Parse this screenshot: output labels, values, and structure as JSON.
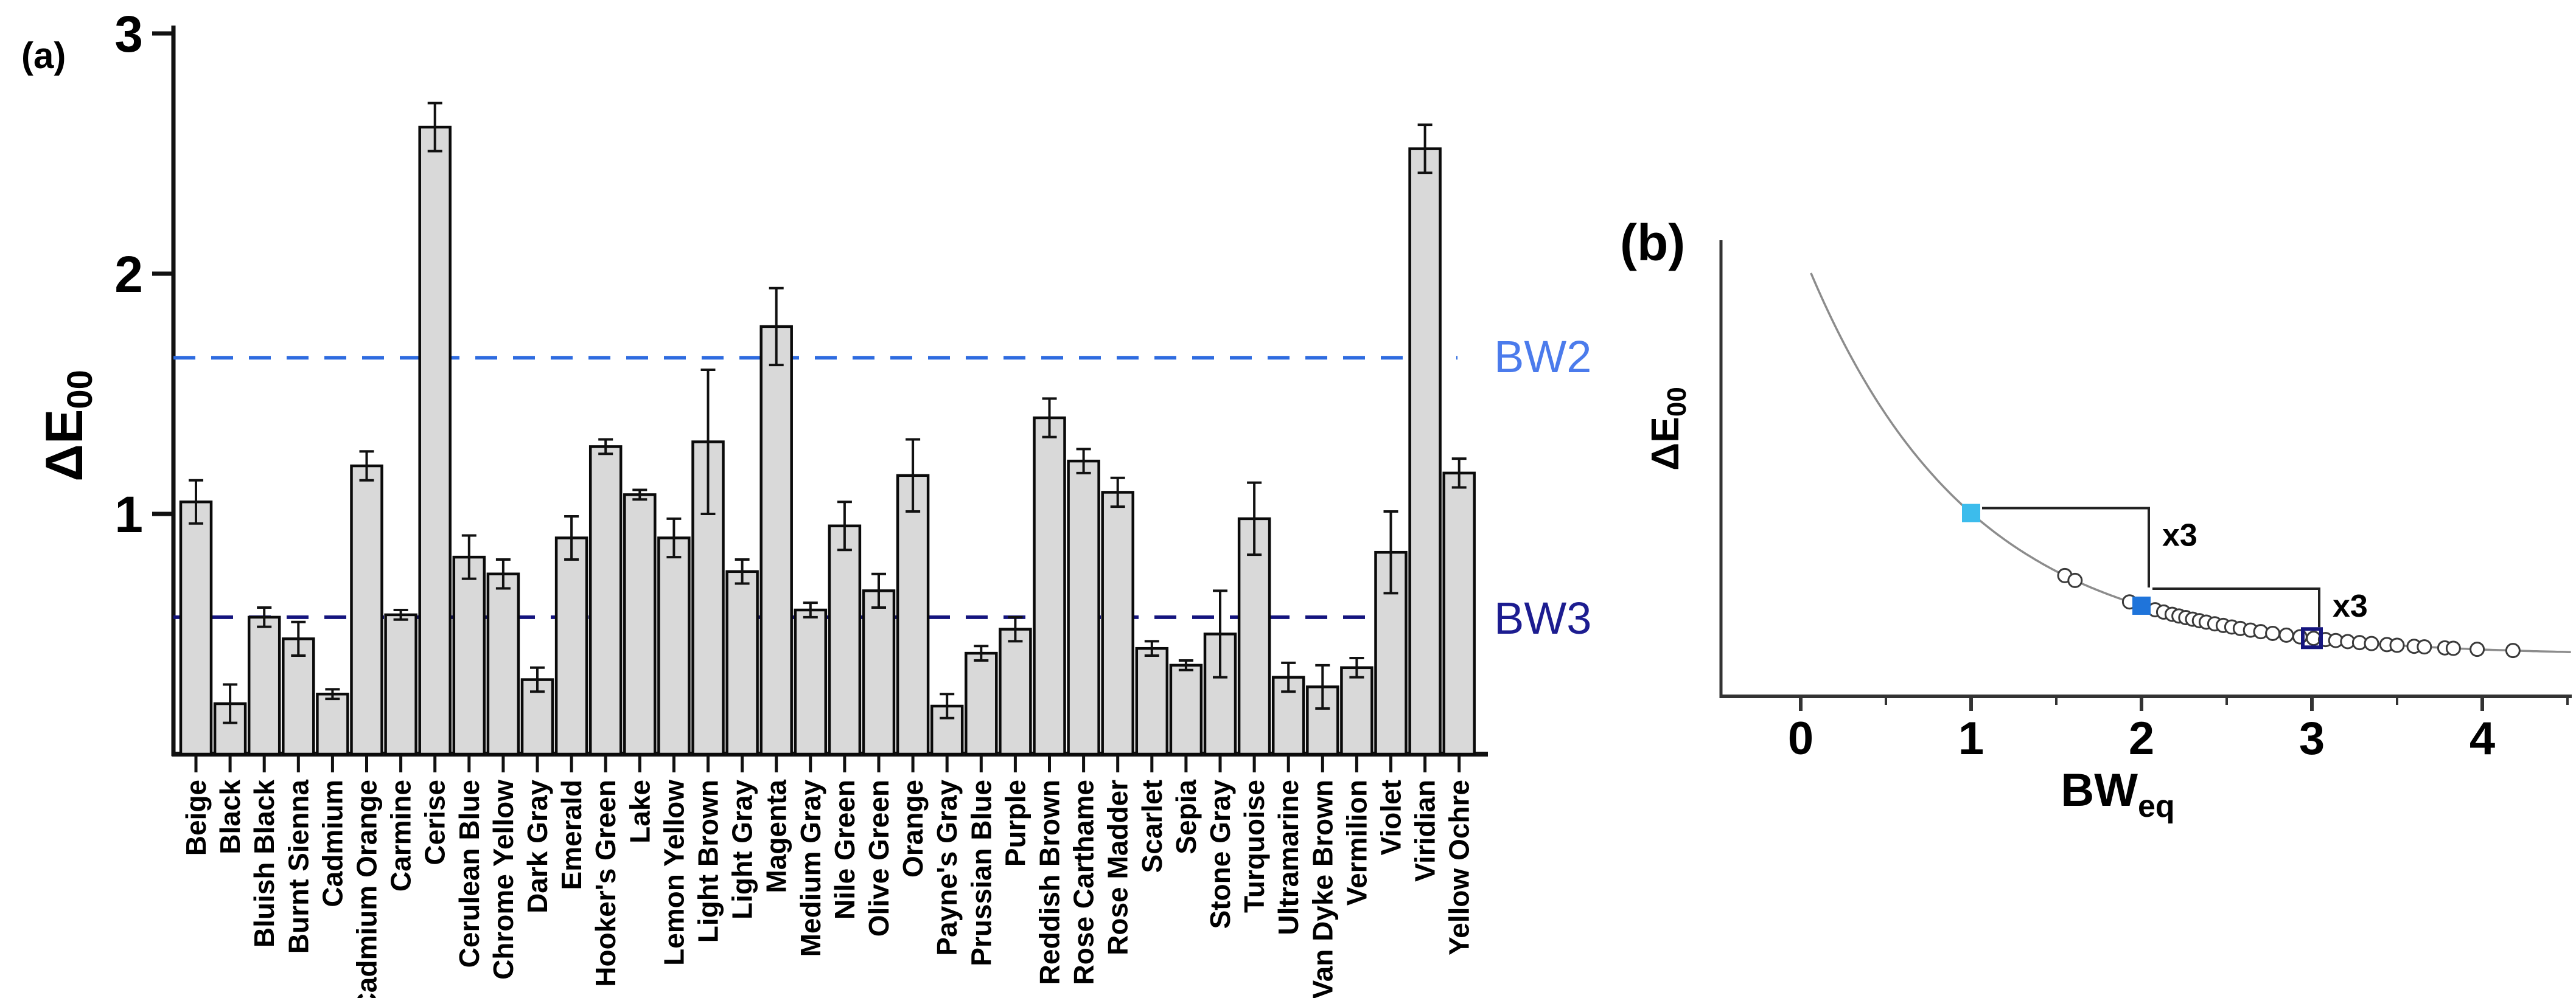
{
  "figure": {
    "panel_a_label": "(a)",
    "panel_b_label": "(b)",
    "ylabel_main": "ΔE",
    "ylabel_sub": "00",
    "xlabel_b_main": "BW",
    "xlabel_b_sub": "eq",
    "bw2_label": "BW2",
    "bw3_label": "BW3"
  },
  "colors": {
    "bar_fill": "#d9d9d9",
    "bar_stroke": "#0a0a0a",
    "axis": "#111111",
    "bw2_line": "#2e6be0",
    "bw2_text": "#4b7bec",
    "bw3_line": "#14147e",
    "bw3_text": "#1c1c90",
    "curve": "#8c8c8c",
    "circle_stroke": "#3a3a3a",
    "square_1": "#3cbcec",
    "square_2": "#1f74da",
    "square_3": "#15157e"
  },
  "chart_data": [
    {
      "type": "bar",
      "panel": "a",
      "title": "",
      "xlabel": "",
      "ylabel": "ΔE00",
      "ylim": [
        0,
        3
      ],
      "yticks": [
        1,
        2,
        3
      ],
      "grid": false,
      "categories": [
        "Beige",
        "Black",
        "Bluish Black",
        "Burnt Sienna",
        "Cadmium",
        "Cadmium Orange",
        "Carmine",
        "Cerise",
        "Cerulean Blue",
        "Chrome Yellow",
        "Dark Gray",
        "Emerald",
        "Hooker's Green",
        "Lake",
        "Lemon Yellow",
        "Light Brown",
        "Light Gray",
        "Magenta",
        "Medium Gray",
        "Nile Green",
        "Olive Green",
        "Orange",
        "Payne's Gray",
        "Prussian Blue",
        "Purple",
        "Reddish Brown",
        "Rose Carthame",
        "Rose Madder",
        "Scarlet",
        "Sepia",
        "Stone Gray",
        "Turquoise",
        "Ultramarine",
        "Van Dyke Brown",
        "Vermilion",
        "Violet",
        "Viridian",
        "Yellow Ochre"
      ],
      "values": [
        1.05,
        0.21,
        0.57,
        0.48,
        0.25,
        1.2,
        0.58,
        2.61,
        0.82,
        0.75,
        0.31,
        0.9,
        1.28,
        1.08,
        0.9,
        1.3,
        0.76,
        1.78,
        0.6,
        0.95,
        0.68,
        1.16,
        0.2,
        0.42,
        0.52,
        1.4,
        1.22,
        1.09,
        0.44,
        0.37,
        0.5,
        0.98,
        0.32,
        0.28,
        0.36,
        0.84,
        2.52,
        1.17
      ],
      "errors": [
        0.09,
        0.08,
        0.04,
        0.07,
        0.02,
        0.06,
        0.02,
        0.1,
        0.09,
        0.06,
        0.05,
        0.09,
        0.03,
        0.02,
        0.08,
        0.3,
        0.05,
        0.16,
        0.03,
        0.1,
        0.07,
        0.15,
        0.05,
        0.03,
        0.05,
        0.08,
        0.05,
        0.06,
        0.03,
        0.02,
        0.18,
        0.15,
        0.06,
        0.09,
        0.04,
        0.17,
        0.1,
        0.06
      ],
      "reference_lines": [
        {
          "label": "BW2",
          "value": 1.65
        },
        {
          "label": "BW3",
          "value": 0.57
        }
      ]
    },
    {
      "type": "scatter",
      "panel": "b",
      "title": "",
      "xlabel": "BWeq",
      "ylabel": "ΔE00",
      "xticks": [
        0,
        1,
        2,
        3,
        4
      ],
      "x_minor_ticks": [
        0.5,
        1.5,
        2.5,
        3.5,
        4.5
      ],
      "xlim": [
        -0.47,
        4.52
      ],
      "grid": false,
      "curve": {
        "model": "decaying exponential ΔE00 vs BWeq",
        "x_start": 0.06,
        "x_end": 4.52,
        "k": 1.05
      },
      "circle_points_x": [
        1.55,
        1.61,
        1.93,
        2.08,
        2.13,
        2.18,
        2.22,
        2.26,
        2.3,
        2.34,
        2.38,
        2.43,
        2.48,
        2.53,
        2.58,
        2.64,
        2.7,
        2.77,
        2.85,
        2.93,
        3.01,
        3.08,
        3.14,
        3.21,
        3.28,
        3.35,
        3.44,
        3.5,
        3.6,
        3.66,
        3.78,
        3.83,
        3.97,
        4.18
      ],
      "square_points": [
        {
          "x": 1,
          "filled": true,
          "color_key": "square_1"
        },
        {
          "x": 2,
          "filled": true,
          "color_key": "square_2"
        },
        {
          "x": 3,
          "filled": false,
          "color_key": "square_3"
        }
      ],
      "annotations": [
        {
          "label": "x3",
          "from_x": 1,
          "to_x": 2
        },
        {
          "label": "x3",
          "from_x": 2,
          "to_x": 3
        }
      ]
    }
  ]
}
